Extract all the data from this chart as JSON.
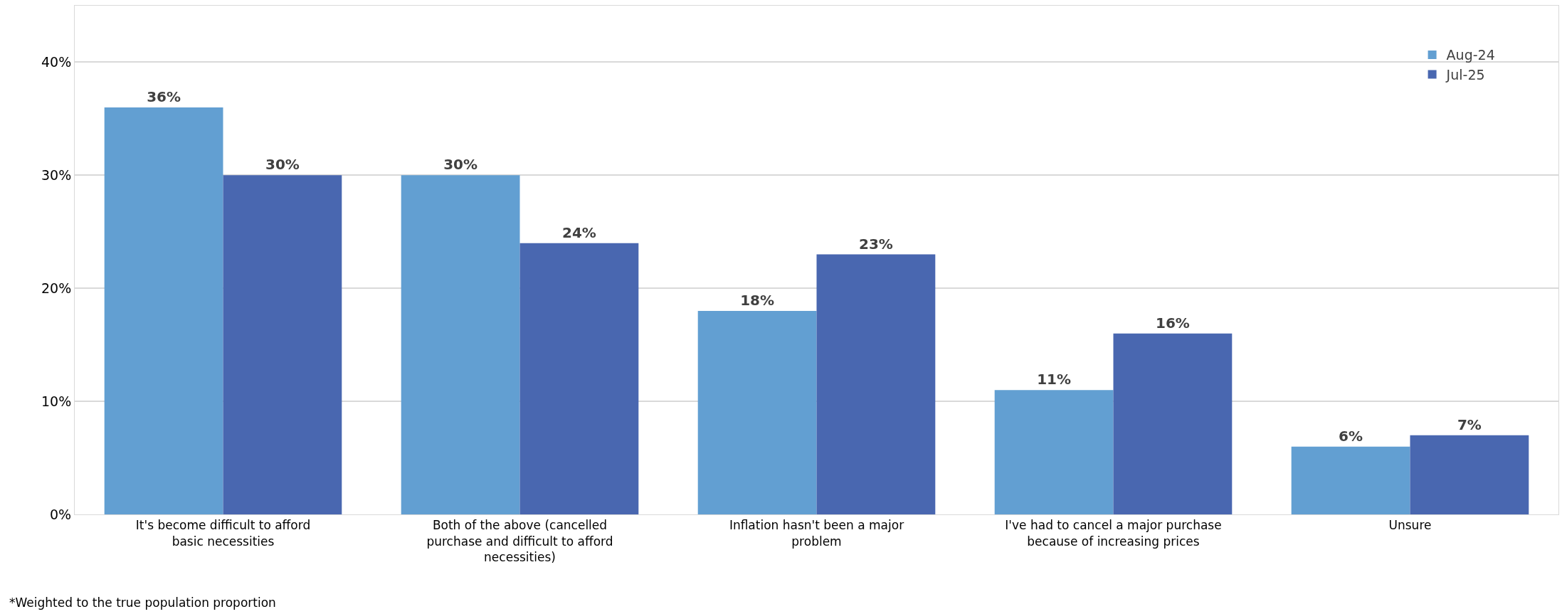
{
  "chart_data": {
    "type": "bar",
    "categories": [
      "It's become difficult to afford basic necessities",
      "Both of the above (cancelled purchase and difficult to afford necessities)",
      "Inflation hasn't been a major problem",
      "I've had to cancel a major purchase because of increasing prices",
      "Unsure"
    ],
    "series": [
      {
        "name": "Aug-24",
        "color": "#629fd2",
        "values": [
          36,
          30,
          18,
          11,
          6
        ],
        "value_labels": [
          "36%",
          "30%",
          "18%",
          "11%",
          "6%"
        ]
      },
      {
        "name": "Jul-25",
        "color": "#4967b0",
        "values": [
          30,
          24,
          23,
          16,
          7
        ],
        "value_labels": [
          "30%",
          "24%",
          "23%",
          "16%",
          "7%"
        ]
      }
    ],
    "ylim": [
      0,
      45
    ],
    "yticks": [
      {
        "value": 0,
        "label": "0%"
      },
      {
        "value": 10,
        "label": "10%"
      },
      {
        "value": 20,
        "label": "20%"
      },
      {
        "value": 30,
        "label": "30%"
      },
      {
        "value": 40,
        "label": "40%"
      }
    ],
    "grid": "y",
    "legend": "top right",
    "annotations": [
      "*Weighted to the true population proportion"
    ]
  }
}
